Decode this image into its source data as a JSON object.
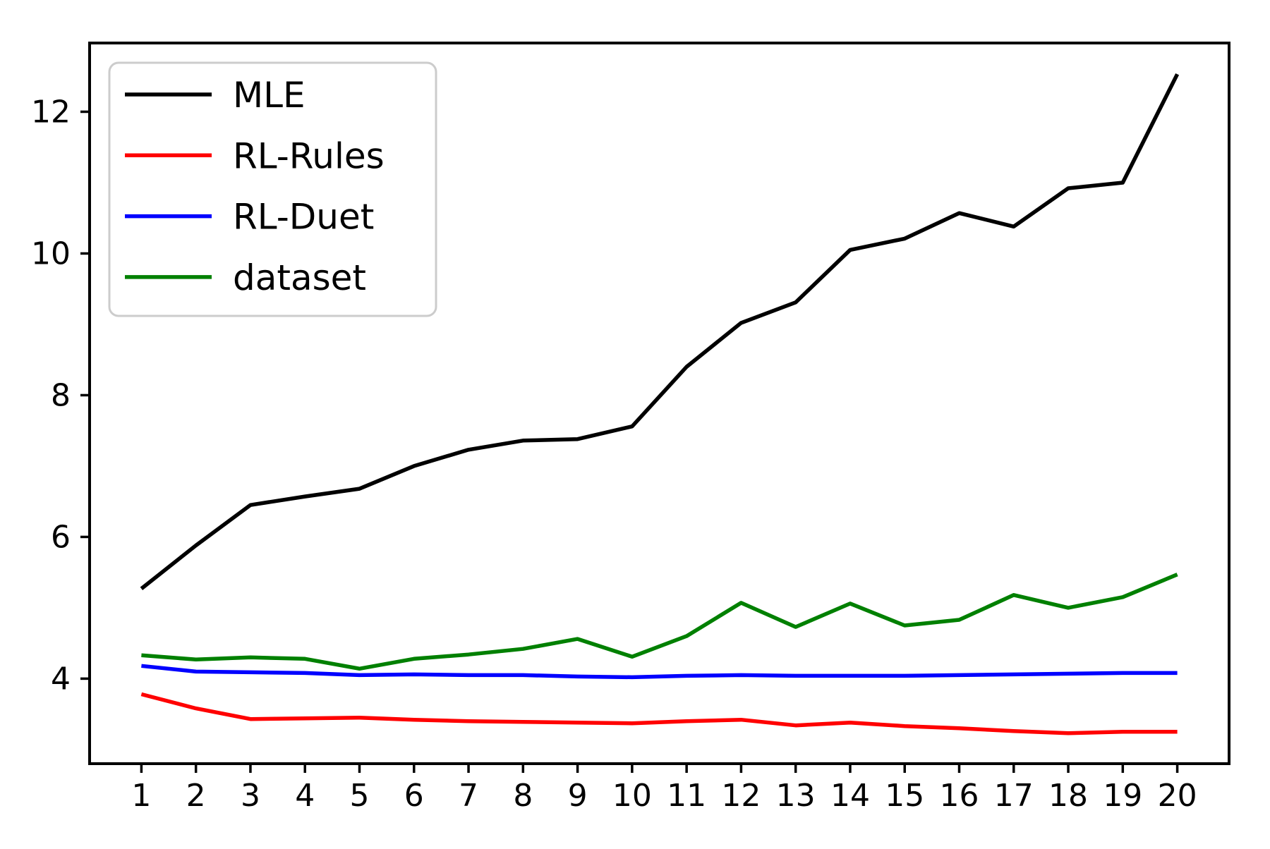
{
  "figure": {
    "background": "#ffffff"
  },
  "colors": {
    "frame": "#000000",
    "tick": "#000000",
    "tick_label": "#000000",
    "legend_border": "#cccccc",
    "legend_bg": "#ffffff",
    "legend_text": "#000000"
  },
  "chart_data": {
    "type": "line",
    "title": "",
    "xlabel": "",
    "ylabel": "",
    "grid": false,
    "x": [
      1,
      2,
      3,
      4,
      5,
      6,
      7,
      8,
      9,
      10,
      11,
      12,
      13,
      14,
      15,
      16,
      17,
      18,
      19,
      20
    ],
    "xticks": [
      1,
      2,
      3,
      4,
      5,
      6,
      7,
      8,
      9,
      10,
      11,
      12,
      13,
      14,
      15,
      16,
      17,
      18,
      19,
      20
    ],
    "yticks": [
      4,
      6,
      8,
      10,
      12
    ],
    "xlim": [
      0.05,
      20.95
    ],
    "ylim": [
      2.8,
      12.97
    ],
    "legend": {
      "position": "upper left",
      "entries": [
        "MLE",
        "RL-Rules",
        "RL-Duet",
        "dataset"
      ]
    },
    "series": [
      {
        "name": "MLE",
        "color": "#000000",
        "values": [
          5.27,
          5.88,
          6.45,
          6.57,
          6.68,
          7.0,
          7.23,
          7.36,
          7.38,
          7.56,
          8.4,
          9.02,
          9.31,
          10.05,
          10.21,
          10.57,
          10.38,
          10.92,
          11.0,
          12.53
        ]
      },
      {
        "name": "RL-Rules",
        "color": "#ff0000",
        "values": [
          3.78,
          3.58,
          3.43,
          3.44,
          3.45,
          3.42,
          3.4,
          3.39,
          3.38,
          3.37,
          3.4,
          3.42,
          3.34,
          3.38,
          3.33,
          3.3,
          3.26,
          3.23,
          3.25,
          3.25
        ]
      },
      {
        "name": "RL-Duet",
        "color": "#0000ff",
        "values": [
          4.18,
          4.1,
          4.09,
          4.08,
          4.05,
          4.06,
          4.05,
          4.05,
          4.03,
          4.02,
          4.04,
          4.05,
          4.04,
          4.04,
          4.04,
          4.05,
          4.06,
          4.07,
          4.08,
          4.08
        ]
      },
      {
        "name": "dataset",
        "color": "#008000",
        "values": [
          4.33,
          4.27,
          4.3,
          4.28,
          4.14,
          4.28,
          4.34,
          4.42,
          4.56,
          4.31,
          4.6,
          5.07,
          4.73,
          5.06,
          4.75,
          4.83,
          5.18,
          5.0,
          5.15,
          5.47
        ]
      }
    ]
  }
}
